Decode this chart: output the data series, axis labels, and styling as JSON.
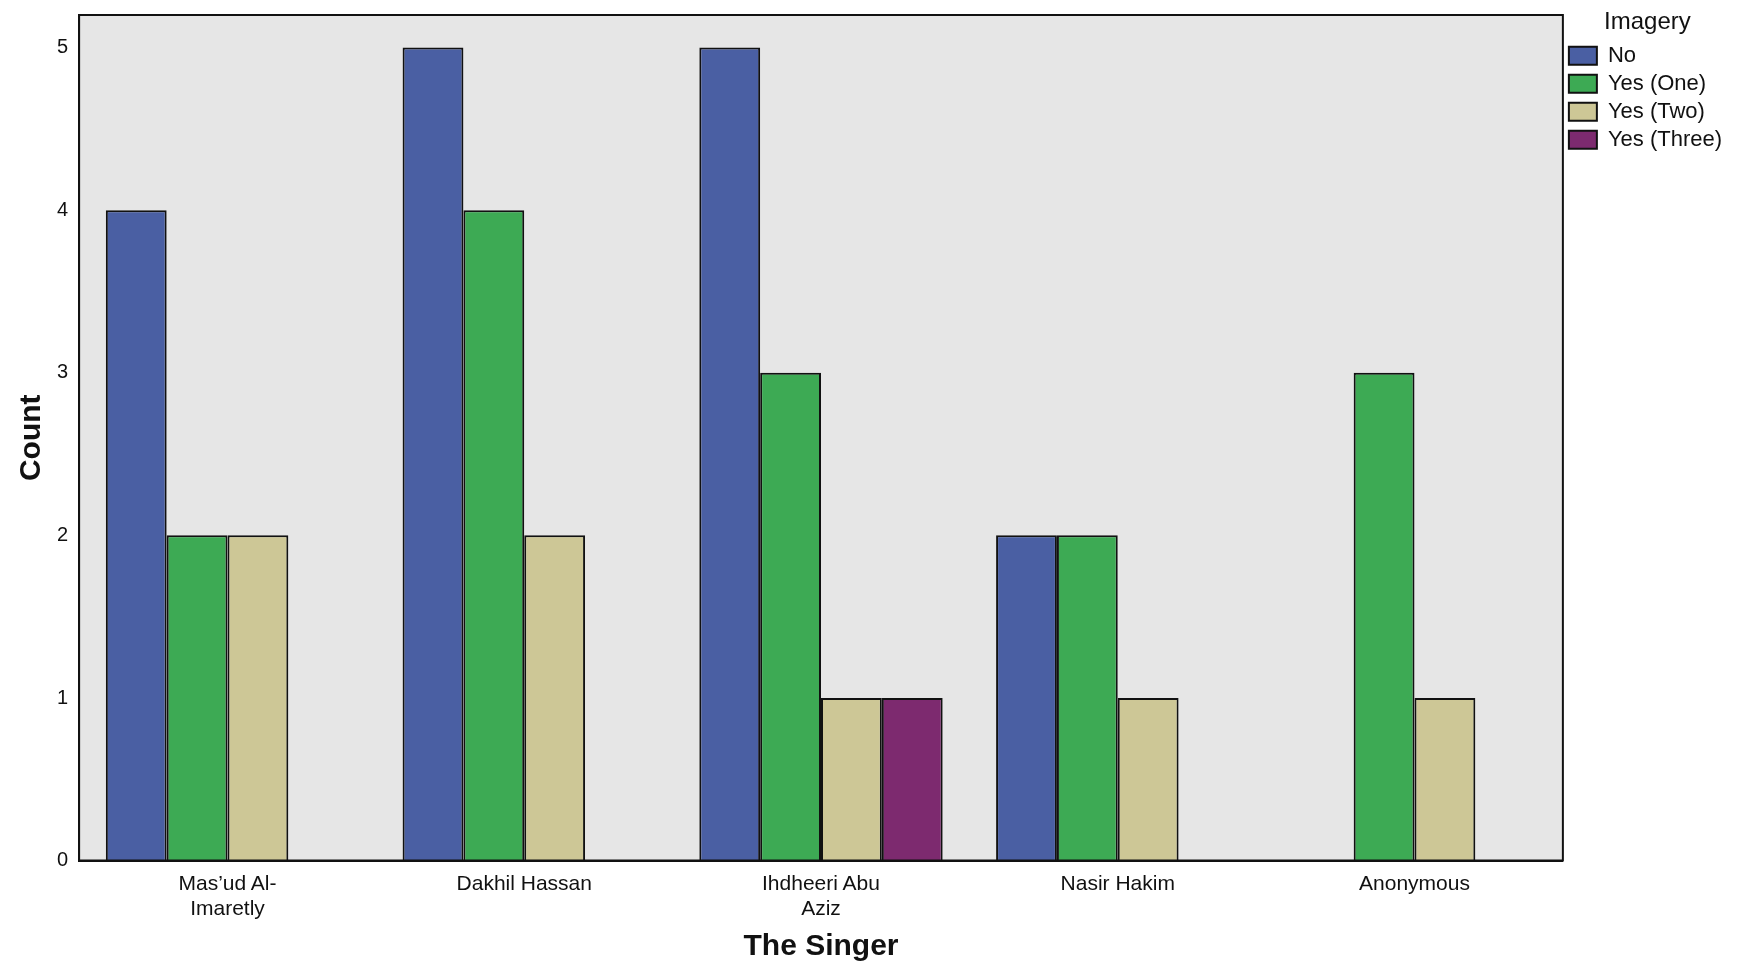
{
  "chart_data": {
    "type": "bar",
    "xlabel": "The Singer",
    "ylabel": "Count",
    "legend_title": "Imagery",
    "legend": "top right",
    "categories": [
      "Mas’ud Al-Imaretly",
      "Dakhil Hassan",
      "Ihdheeri Abu Aziz",
      "Nasir Hakim",
      "Anonymous"
    ],
    "series": [
      {
        "name": "No",
        "color": "#4a5fa3",
        "values": [
          4,
          5,
          5,
          2,
          0
        ]
      },
      {
        "name": "Yes (One)",
        "color": "#3daa54",
        "values": [
          2,
          4,
          3,
          2,
          3
        ]
      },
      {
        "name": "Yes (Two)",
        "color": "#cdc796",
        "values": [
          2,
          2,
          1,
          1,
          1
        ]
      },
      {
        "name": "Yes (Three)",
        "color": "#7d2a6f",
        "values": [
          0,
          0,
          1,
          0,
          0
        ]
      }
    ],
    "ylim": [
      0,
      5.2
    ],
    "yticks": [
      0,
      1,
      2,
      3,
      4,
      5
    ],
    "grid": false
  }
}
